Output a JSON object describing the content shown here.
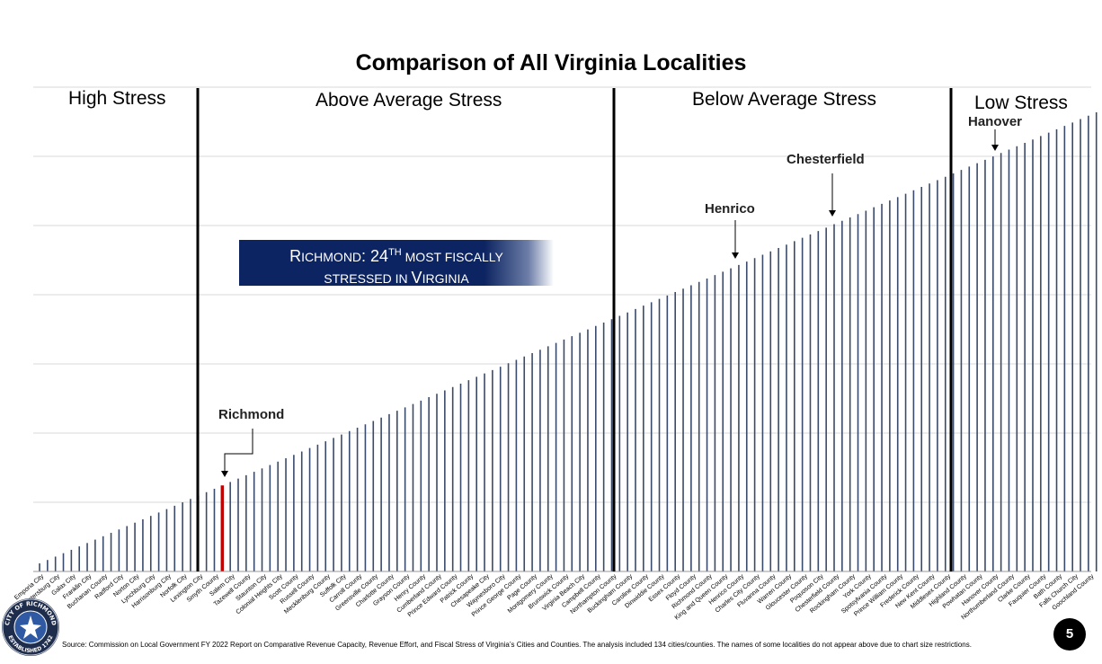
{
  "title": "Comparison of All Virginia Localities",
  "zones": [
    "High Stress",
    "Above Average Stress",
    "Below Average Stress",
    "Low Stress"
  ],
  "banner": {
    "line1_a": "R",
    "line1_b": "ichmond",
    "line1_c": ": 24",
    "line1_sup": "th",
    "line1_d": " most fiscally",
    "line2_a": "stressed in ",
    "line2_b": "V",
    "line2_c": "irginia"
  },
  "callouts": {
    "richmond": "Richmond",
    "henrico": "Henrico",
    "chesterfield": "Chesterfield",
    "hanover": "Hanover"
  },
  "source": "Source: Commission on Local Government FY 2022 Report on Comparative Revenue Capacity, Revenue Effort, and Fiscal Stress of Virginia’s Cities and Counties. The analysis included 134 cities/counties.  The names of some localities do not appear above due to chart size restrictions.",
  "page_number": "5",
  "seal": {
    "top_text": "CITY OF RICHMOND",
    "bottom_text": "ESTABLISHED 1742"
  },
  "colors": {
    "bar": "#3a4a6b",
    "highlight_bar": "#c00000",
    "banner_bg": "#0c2461",
    "divider": "#000000",
    "gridline": "#d9d9d9"
  },
  "chart_data": {
    "type": "bar",
    "n_bars": 134,
    "highlight_rank": 24,
    "highlight_name": "Richmond",
    "values_note_scale": [
      0,
      1
    ],
    "values": "linear",
    "categories": [
      "Emporia City",
      "Petersburg City",
      "Galax City",
      "Franklin City",
      "Buchanan County",
      "Radford City",
      "Norton City",
      "Lynchburg City",
      "Harrisonburg City",
      "Norfolk City",
      "Lexington City",
      "Smyth County",
      "Salem City",
      "Tazewell County",
      "Staunton City",
      "Colonial Heights City",
      "Scott County",
      "Russell County",
      "Mecklenburg County",
      "Suffolk City",
      "Carroll County",
      "Greensville County",
      "Charlotte County",
      "Grayson County",
      "Henry County",
      "Cumberland County",
      "Prince Edward County",
      "Patrick County",
      "Chesapeake City",
      "Waynesboro City",
      "Prince George County",
      "Page County",
      "Montgomery County",
      "Brunswick County",
      "Virginia Beach City",
      "Campbell County",
      "Northampton County",
      "Buckingham County",
      "Caroline County",
      "Dinwiddie County",
      "Essex County",
      "Floyd County",
      "Richmond County",
      "King and Queen County",
      "Henrico County",
      "Charles City County",
      "Fluvanna County",
      "Warren County",
      "Gloucester County",
      "Poquoson City",
      "Chesterfield County",
      "Rockingham County",
      "York County",
      "Spotsylvania County",
      "Prince William County",
      "Frederick County",
      "New Kent County",
      "Middlesex County",
      "Highland County",
      "Powhatan County",
      "Hanover County",
      "Northumberland County",
      "Clarke County",
      "Fauquier County",
      "Bath County",
      "Falls Church City",
      "Goochland County"
    ],
    "zone_boundaries_rank": [
      22,
      75,
      115
    ],
    "callout_ranks": {
      "Richmond": 24,
      "Henrico": 89,
      "Chesterfield": 101,
      "Hanover": 121
    }
  }
}
